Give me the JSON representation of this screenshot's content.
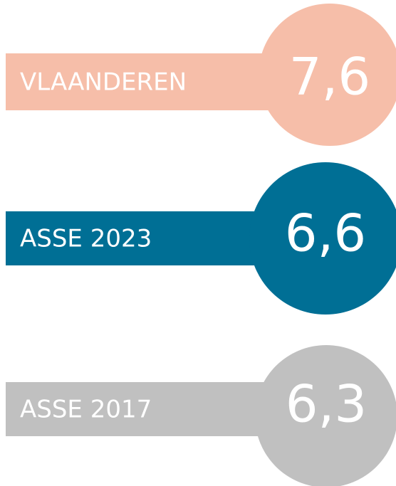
{
  "items": [
    {
      "label": "VLAANDEREN",
      "value": "7,6",
      "color": "#f6bea9"
    },
    {
      "label": "ASSE 2023",
      "value": "6,6",
      "color": "#006f95"
    },
    {
      "label": "ASSE 2017",
      "value": "6,3",
      "color": "#c0c0c0"
    }
  ]
}
